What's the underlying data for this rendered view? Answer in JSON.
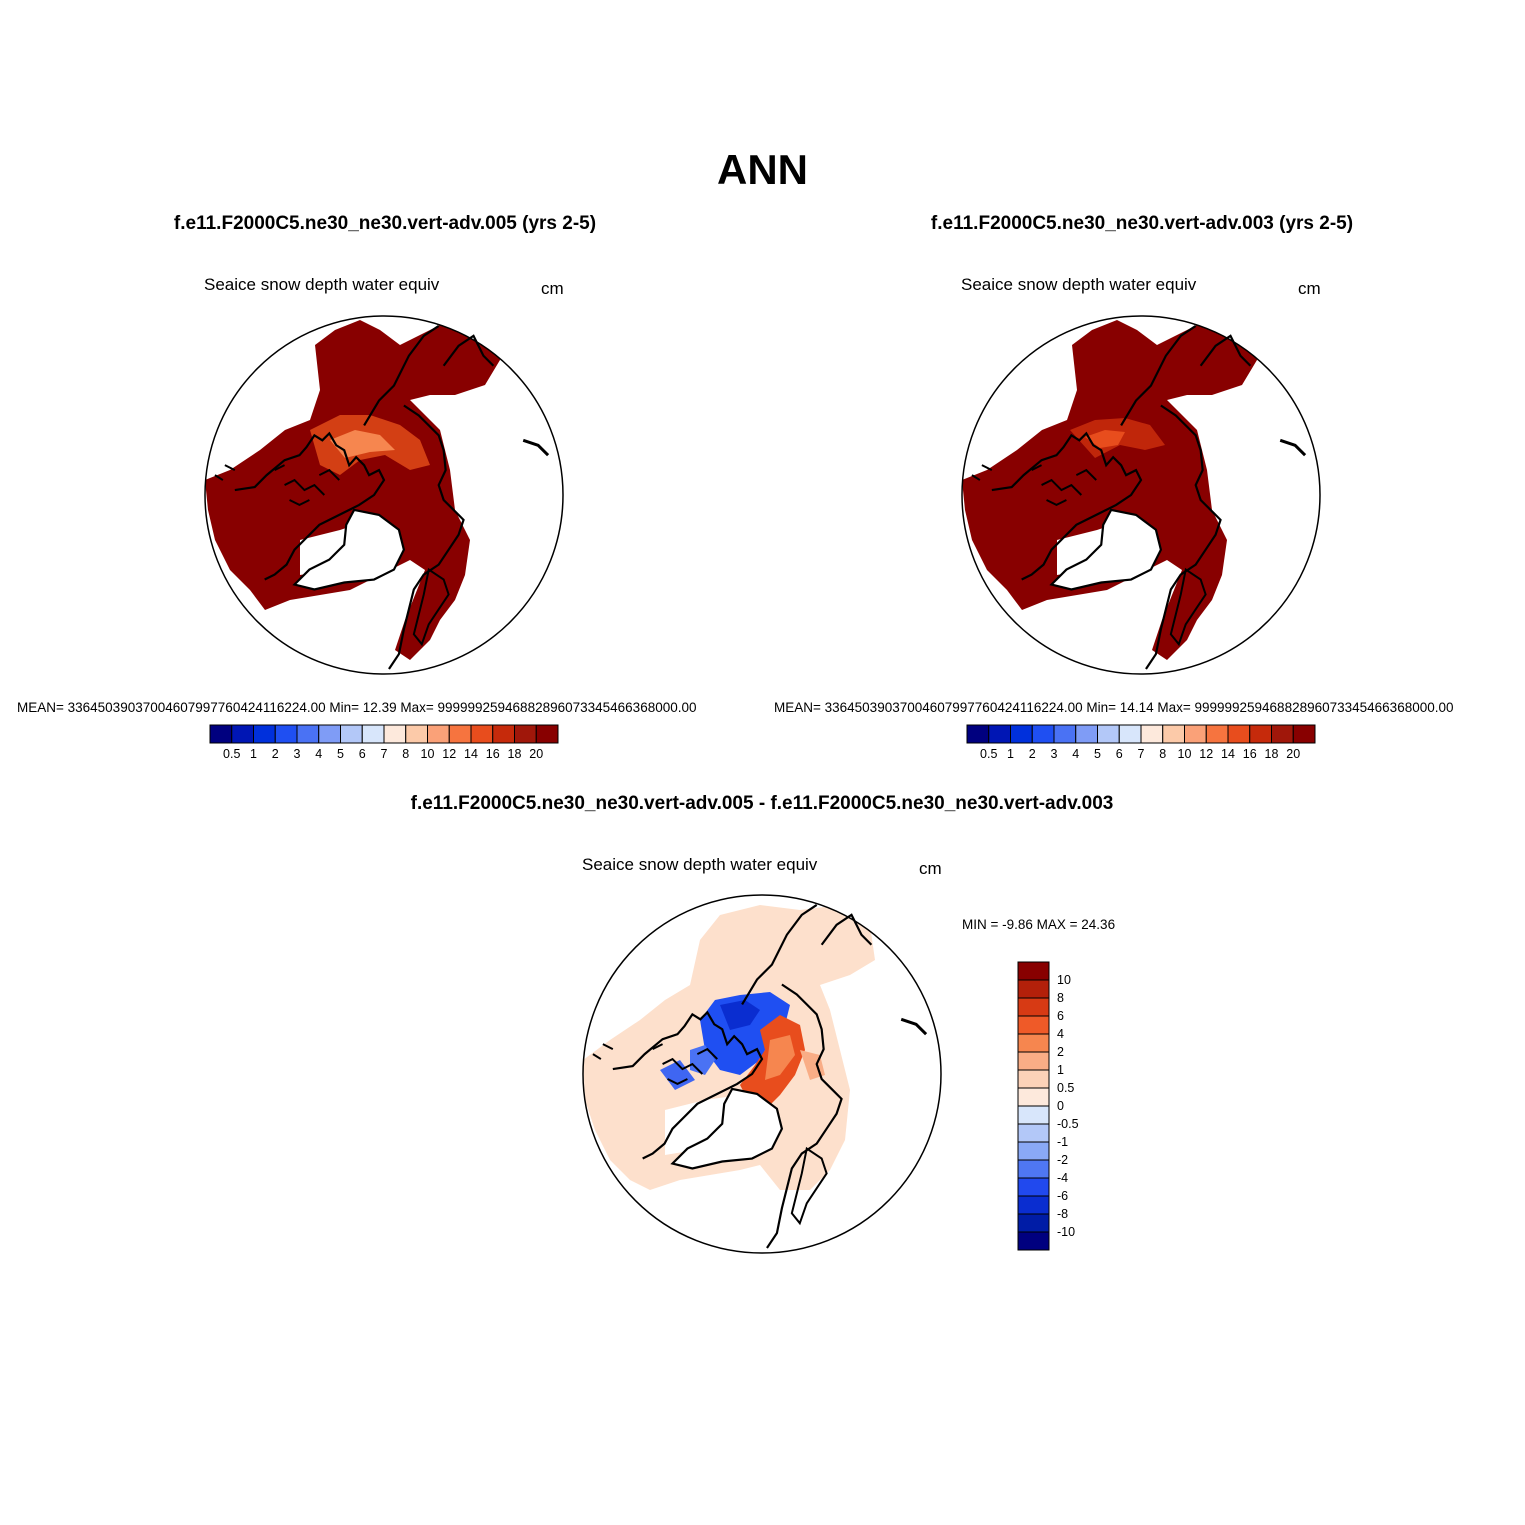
{
  "page": {
    "title": "ANN"
  },
  "panels": [
    {
      "case_title": "f.e11.F2000C5.ne30_ne30.vert-adv.005 (yrs 2-5)",
      "variable": "Seaice snow depth water equiv",
      "units": "cm",
      "stats": "MEAN= 3364503903700460799776042411622 4.00  Min=  12.39  Max= 99999925946882896073345466368000.00",
      "colorbar": {
        "levels": [
          "0.5",
          "1",
          "2",
          "3",
          "4",
          "5",
          "6",
          "7",
          "8",
          "10",
          "12",
          "14",
          "16",
          "18",
          "20"
        ],
        "colors": [
          "#00007f",
          "#0016b4",
          "#0030dc",
          "#1f4ff2",
          "#4a72f4",
          "#7f9cf6",
          "#b3c8f8",
          "#d8e6fb",
          "#fde9dc",
          "#fccaa9",
          "#faa178",
          "#f6743f",
          "#e84d1d",
          "#c62a0b",
          "#a0170a",
          "#880000"
        ]
      }
    },
    {
      "case_title": "f.e11.F2000C5.ne30_ne30.vert-adv.003 (yrs 2-5)",
      "variable": "Seaice snow depth water equiv",
      "units": "cm",
      "stats": "MEAN= 33645039037004607997760424116224.00  Min=  14.14  Max= 99999925946882896073345466368000.00",
      "colorbar": {
        "levels": [
          "0.5",
          "1",
          "2",
          "3",
          "4",
          "5",
          "6",
          "7",
          "8",
          "10",
          "12",
          "14",
          "16",
          "18",
          "20"
        ],
        "colors": [
          "#00007f",
          "#0016b4",
          "#0030dc",
          "#1f4ff2",
          "#4a72f4",
          "#7f9cf6",
          "#b3c8f8",
          "#d8e6fb",
          "#fde9dc",
          "#fccaa9",
          "#faa178",
          "#f6743f",
          "#e84d1d",
          "#c62a0b",
          "#a0170a",
          "#880000"
        ]
      }
    }
  ],
  "difference": {
    "title": "f.e11.F2000C5.ne30_ne30.vert-adv.005 - f.e11.F2000C5.ne30_ne30.vert-adv.003",
    "variable": "Seaice snow depth water equiv",
    "units": "cm",
    "minmax": "MIN =  -9.86 MAX =  24.36",
    "colorbar": {
      "levels": [
        "10",
        "8",
        "6",
        "4",
        "2",
        "1",
        "0.5",
        "0",
        "-0.5",
        "-1",
        "-2",
        "-4",
        "-6",
        "-8",
        "-10"
      ],
      "colors": [
        "#880000",
        "#b3200a",
        "#d73a14",
        "#ef5a28",
        "#f6864f",
        "#f9ad86",
        "#fcd2b8",
        "#fde9dc",
        "#d8e6fb",
        "#b3c8f8",
        "#8aa9f6",
        "#4f77f3",
        "#2149ee",
        "#0a2dd0",
        "#001ca6",
        "#00007f"
      ]
    }
  }
}
